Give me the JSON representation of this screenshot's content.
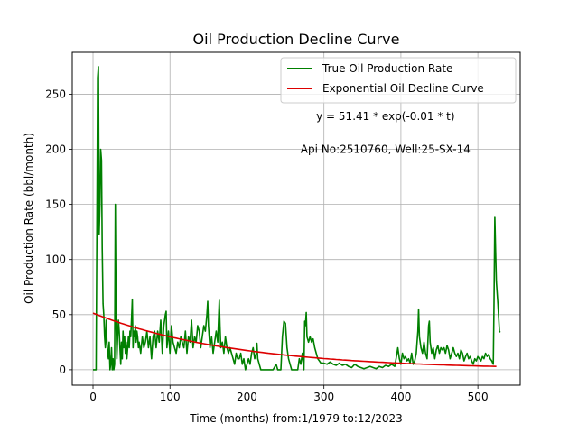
{
  "chart_data": {
    "type": "line",
    "title": "Oil Production Decline Curve",
    "xlabel": "Time (months) from:1/1979 to:12/2023",
    "ylabel": "Oil Production Rate (bbl/month)",
    "xlim": [
      -27,
      555
    ],
    "ylim": [
      -14,
      288
    ],
    "xticks": [
      0,
      100,
      200,
      300,
      400,
      500
    ],
    "yticks": [
      0,
      50,
      100,
      150,
      200,
      250
    ],
    "grid": true,
    "legend_position": "top-right",
    "annotations": [
      {
        "text": "y = 51.41 * exp(-0.01 * t)",
        "x": 380,
        "y": 230
      },
      {
        "text": "Api No:2510760, Well:25-SX-14",
        "x": 380,
        "y": 200
      }
    ],
    "series": [
      {
        "name": "True Oil Production Rate",
        "color": "#008000",
        "points": [
          [
            0,
            0
          ],
          [
            3,
            0
          ],
          [
            4,
            0
          ],
          [
            5,
            130
          ],
          [
            6,
            265
          ],
          [
            7,
            275
          ],
          [
            8,
            123
          ],
          [
            9,
            150
          ],
          [
            10,
            200
          ],
          [
            11,
            190
          ],
          [
            12,
            110
          ],
          [
            13,
            60
          ],
          [
            14,
            50
          ],
          [
            15,
            30
          ],
          [
            16,
            20
          ],
          [
            17,
            45
          ],
          [
            18,
            25
          ],
          [
            19,
            15
          ],
          [
            20,
            10
          ],
          [
            21,
            25
          ],
          [
            22,
            0
          ],
          [
            23,
            5
          ],
          [
            24,
            20
          ],
          [
            25,
            0
          ],
          [
            26,
            10
          ],
          [
            27,
            0
          ],
          [
            28,
            5
          ],
          [
            29,
            150
          ],
          [
            30,
            40
          ],
          [
            31,
            10
          ],
          [
            32,
            30
          ],
          [
            33,
            45
          ],
          [
            34,
            35
          ],
          [
            35,
            20
          ],
          [
            36,
            5
          ],
          [
            37,
            25
          ],
          [
            38,
            10
          ],
          [
            39,
            35
          ],
          [
            40,
            20
          ],
          [
            41,
            30
          ],
          [
            42,
            15
          ],
          [
            43,
            25
          ],
          [
            44,
            10
          ],
          [
            45,
            20
          ],
          [
            46,
            30
          ],
          [
            47,
            20
          ],
          [
            48,
            35
          ],
          [
            49,
            30
          ],
          [
            50,
            45
          ],
          [
            51,
            64
          ],
          [
            52,
            20
          ],
          [
            53,
            35
          ],
          [
            54,
            30
          ],
          [
            55,
            40
          ],
          [
            56,
            25
          ],
          [
            57,
            35
          ],
          [
            58,
            30
          ],
          [
            59,
            20
          ],
          [
            60,
            25
          ],
          [
            62,
            15
          ],
          [
            64,
            30
          ],
          [
            66,
            20
          ],
          [
            68,
            25
          ],
          [
            70,
            35
          ],
          [
            72,
            20
          ],
          [
            74,
            30
          ],
          [
            76,
            10
          ],
          [
            78,
            30
          ],
          [
            80,
            35
          ],
          [
            82,
            20
          ],
          [
            84,
            35
          ],
          [
            86,
            25
          ],
          [
            88,
            45
          ],
          [
            90,
            15
          ],
          [
            92,
            40
          ],
          [
            94,
            50
          ],
          [
            95,
            53
          ],
          [
            96,
            20
          ],
          [
            98,
            35
          ],
          [
            100,
            15
          ],
          [
            102,
            40
          ],
          [
            104,
            25
          ],
          [
            106,
            20
          ],
          [
            108,
            15
          ],
          [
            110,
            25
          ],
          [
            112,
            20
          ],
          [
            114,
            30
          ],
          [
            116,
            25
          ],
          [
            118,
            20
          ],
          [
            120,
            35
          ],
          [
            122,
            15
          ],
          [
            124,
            30
          ],
          [
            126,
            25
          ],
          [
            128,
            45
          ],
          [
            130,
            20
          ],
          [
            132,
            30
          ],
          [
            134,
            25
          ],
          [
            136,
            40
          ],
          [
            138,
            35
          ],
          [
            140,
            20
          ],
          [
            142,
            30
          ],
          [
            144,
            40
          ],
          [
            146,
            35
          ],
          [
            148,
            50
          ],
          [
            149,
            62
          ],
          [
            150,
            40
          ],
          [
            152,
            20
          ],
          [
            154,
            30
          ],
          [
            156,
            15
          ],
          [
            158,
            25
          ],
          [
            160,
            35
          ],
          [
            162,
            25
          ],
          [
            164,
            63
          ],
          [
            165,
            40
          ],
          [
            166,
            20
          ],
          [
            168,
            25
          ],
          [
            170,
            15
          ],
          [
            172,
            30
          ],
          [
            174,
            20
          ],
          [
            176,
            15
          ],
          [
            178,
            20
          ],
          [
            180,
            15
          ],
          [
            182,
            10
          ],
          [
            184,
            5
          ],
          [
            186,
            15
          ],
          [
            188,
            10
          ],
          [
            190,
            10
          ],
          [
            192,
            15
          ],
          [
            194,
            5
          ],
          [
            196,
            10
          ],
          [
            198,
            0
          ],
          [
            200,
            5
          ],
          [
            202,
            10
          ],
          [
            204,
            5
          ],
          [
            206,
            15
          ],
          [
            208,
            20
          ],
          [
            210,
            10
          ],
          [
            212,
            15
          ],
          [
            213,
            24
          ],
          [
            214,
            10
          ],
          [
            216,
            5
          ],
          [
            218,
            0
          ],
          [
            222,
            0
          ],
          [
            226,
            0
          ],
          [
            230,
            0
          ],
          [
            234,
            0
          ],
          [
            238,
            5
          ],
          [
            240,
            0
          ],
          [
            244,
            0
          ],
          [
            246,
            30
          ],
          [
            248,
            44
          ],
          [
            250,
            42
          ],
          [
            252,
            20
          ],
          [
            254,
            10
          ],
          [
            256,
            5
          ],
          [
            258,
            0
          ],
          [
            262,
            0
          ],
          [
            266,
            0
          ],
          [
            268,
            10
          ],
          [
            270,
            5
          ],
          [
            272,
            15
          ],
          [
            274,
            0
          ],
          [
            275,
            44
          ],
          [
            276,
            40
          ],
          [
            277,
            52
          ],
          [
            278,
            30
          ],
          [
            280,
            25
          ],
          [
            282,
            30
          ],
          [
            284,
            25
          ],
          [
            286,
            28
          ],
          [
            288,
            20
          ],
          [
            290,
            15
          ],
          [
            292,
            10
          ],
          [
            294,
            8
          ],
          [
            296,
            6
          ],
          [
            300,
            6
          ],
          [
            304,
            5
          ],
          [
            308,
            7
          ],
          [
            312,
            5
          ],
          [
            316,
            4
          ],
          [
            320,
            6
          ],
          [
            324,
            4
          ],
          [
            328,
            5
          ],
          [
            332,
            3
          ],
          [
            336,
            2
          ],
          [
            340,
            5
          ],
          [
            344,
            3
          ],
          [
            348,
            2
          ],
          [
            352,
            1
          ],
          [
            356,
            2
          ],
          [
            360,
            3
          ],
          [
            364,
            2
          ],
          [
            368,
            1
          ],
          [
            372,
            3
          ],
          [
            376,
            2
          ],
          [
            380,
            4
          ],
          [
            384,
            3
          ],
          [
            388,
            5
          ],
          [
            392,
            3
          ],
          [
            395,
            15
          ],
          [
            396,
            20
          ],
          [
            398,
            10
          ],
          [
            400,
            5
          ],
          [
            402,
            15
          ],
          [
            404,
            10
          ],
          [
            406,
            12
          ],
          [
            408,
            8
          ],
          [
            410,
            10
          ],
          [
            412,
            6
          ],
          [
            414,
            15
          ],
          [
            416,
            5
          ],
          [
            418,
            8
          ],
          [
            420,
            15
          ],
          [
            422,
            35
          ],
          [
            423,
            55
          ],
          [
            424,
            30
          ],
          [
            426,
            20
          ],
          [
            428,
            15
          ],
          [
            430,
            25
          ],
          [
            432,
            15
          ],
          [
            434,
            10
          ],
          [
            436,
            40
          ],
          [
            437,
            44
          ],
          [
            438,
            25
          ],
          [
            440,
            15
          ],
          [
            442,
            20
          ],
          [
            444,
            10
          ],
          [
            446,
            18
          ],
          [
            448,
            22
          ],
          [
            450,
            15
          ],
          [
            452,
            20
          ],
          [
            454,
            18
          ],
          [
            456,
            20
          ],
          [
            458,
            15
          ],
          [
            460,
            22
          ],
          [
            462,
            18
          ],
          [
            464,
            10
          ],
          [
            466,
            15
          ],
          [
            468,
            20
          ],
          [
            470,
            15
          ],
          [
            472,
            12
          ],
          [
            474,
            15
          ],
          [
            476,
            10
          ],
          [
            478,
            18
          ],
          [
            480,
            15
          ],
          [
            482,
            8
          ],
          [
            484,
            12
          ],
          [
            486,
            15
          ],
          [
            488,
            10
          ],
          [
            490,
            12
          ],
          [
            492,
            8
          ],
          [
            494,
            5
          ],
          [
            496,
            10
          ],
          [
            498,
            8
          ],
          [
            500,
            12
          ],
          [
            502,
            10
          ],
          [
            504,
            8
          ],
          [
            506,
            12
          ],
          [
            508,
            10
          ],
          [
            510,
            15
          ],
          [
            512,
            12
          ],
          [
            514,
            14
          ],
          [
            516,
            10
          ],
          [
            518,
            8
          ],
          [
            520,
            5
          ],
          [
            521,
            60
          ],
          [
            522,
            139
          ],
          [
            523,
            110
          ],
          [
            524,
            80
          ],
          [
            526,
            60
          ],
          [
            528,
            35
          ],
          [
            529,
            34
          ]
        ]
      },
      {
        "name": "Exponential Oil Decline Curve",
        "color": "#dd0000",
        "function": {
          "a": 51.41,
          "b": 0.0054,
          "t_min": 0,
          "t_max": 527
        }
      }
    ]
  }
}
